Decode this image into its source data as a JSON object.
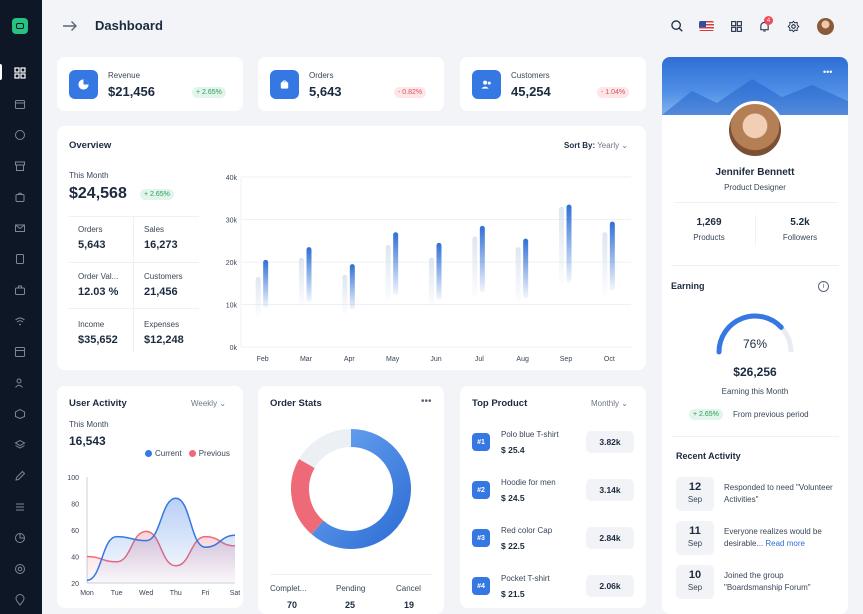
{
  "header": {
    "title": "Dashboard"
  },
  "kpis": [
    {
      "label": "Revenue",
      "value": "$21,456",
      "change": "+ 2.65%",
      "trend": "up"
    },
    {
      "label": "Orders",
      "value": "5,643",
      "change": "- 0.82%",
      "trend": "down"
    },
    {
      "label": "Customers",
      "value": "45,254",
      "change": "- 1.04%",
      "trend": "down"
    }
  ],
  "overview": {
    "title": "Overview",
    "sort_label": "Sort By:",
    "sort_value": "Yearly",
    "this_month_label": "This Month",
    "total": "$24,568",
    "change": "+ 2.65%",
    "stats": [
      {
        "label": "Orders",
        "value": "5,643"
      },
      {
        "label": "Sales",
        "value": "16,273"
      },
      {
        "label": "Order Val...",
        "value": "12.03 %"
      },
      {
        "label": "Customers",
        "value": "21,456"
      },
      {
        "label": "Income",
        "value": "$35,652"
      },
      {
        "label": "Expenses",
        "value": "$12,248"
      }
    ]
  },
  "user_activity": {
    "title": "User Activity",
    "period": "Weekly",
    "this_month_label": "This Month",
    "value": "16,543",
    "legend_current": "Current",
    "legend_previous": "Previous"
  },
  "order_stats": {
    "title": "Order Stats",
    "items": [
      {
        "label": "Complet...",
        "value": "70"
      },
      {
        "label": "Pending",
        "value": "25"
      },
      {
        "label": "Cancel",
        "value": "19"
      }
    ]
  },
  "top_product": {
    "title": "Top Product",
    "period": "Monthly",
    "items": [
      {
        "rank": "#1",
        "name": "Polo blue T-shirt",
        "price": "$ 25.4",
        "sales": "3.82k"
      },
      {
        "rank": "#2",
        "name": "Hoodie for men",
        "price": "$ 24.5",
        "sales": "3.14k"
      },
      {
        "rank": "#3",
        "name": "Red color Cap",
        "price": "$ 22.5",
        "sales": "2.84k"
      },
      {
        "rank": "#4",
        "name": "Pocket T-shirt",
        "price": "$ 21.5",
        "sales": "2.06k"
      }
    ]
  },
  "profile": {
    "name": "Jennifer Bennett",
    "role": "Product Designer",
    "products_value": "1,269",
    "products_label": "Products",
    "followers_value": "5.2k",
    "followers_label": "Followers",
    "earning_title": "Earning",
    "gauge_percent": "76%",
    "earning_value": "$26,256",
    "earning_label": "Earning this Month",
    "earning_change": "+ 2.65%",
    "earning_change_text": "From previous period",
    "recent_title": "Recent Activity",
    "activities": [
      {
        "day": "12",
        "month": "Sep",
        "text": "Responded to need \"Volunteer Activities\"",
        "link": ""
      },
      {
        "day": "11",
        "month": "Sep",
        "text": "Everyone realizes would be desirable...",
        "link": "Read more"
      },
      {
        "day": "10",
        "month": "Sep",
        "text": "Joined the group \"Boardsmanship Forum\"",
        "link": ""
      }
    ]
  },
  "colors": {
    "accent": "#3577e3",
    "danger": "#ef6a78",
    "success": "#2b9b5a",
    "sidebar": "#0d1725"
  },
  "chart_data": [
    {
      "type": "bar",
      "title": "Overview",
      "categories": [
        "Feb",
        "Mar",
        "Apr",
        "May",
        "Jun",
        "Jul",
        "Aug",
        "Sep",
        "Oct"
      ],
      "series": [
        {
          "name": "Current",
          "values": [
            20.5,
            23.5,
            19.5,
            27,
            24.5,
            28.5,
            25.5,
            33.5,
            29.5
          ]
        },
        {
          "name": "Previous",
          "values": [
            16.5,
            21,
            17,
            24,
            21,
            26,
            23.5,
            33,
            27
          ]
        }
      ],
      "ylim": [
        0,
        40
      ],
      "yticks": [
        "0k",
        "10k",
        "20k",
        "30k",
        "40k"
      ]
    },
    {
      "type": "line",
      "title": "User Activity",
      "categories": [
        "Mon",
        "Tue",
        "Wed",
        "Thu",
        "Fri",
        "Sat"
      ],
      "series": [
        {
          "name": "Current",
          "values": [
            22,
            55,
            52,
            84,
            47,
            56
          ]
        },
        {
          "name": "Previous",
          "values": [
            40,
            36,
            59,
            33,
            55,
            48
          ]
        }
      ],
      "ylim": [
        20,
        100
      ],
      "yticks": [
        "20",
        "40",
        "60",
        "80",
        "100"
      ]
    },
    {
      "type": "pie",
      "title": "Order Stats",
      "categories": [
        "Completed",
        "Pending",
        "Cancel"
      ],
      "values": [
        70,
        25,
        19
      ]
    }
  ]
}
